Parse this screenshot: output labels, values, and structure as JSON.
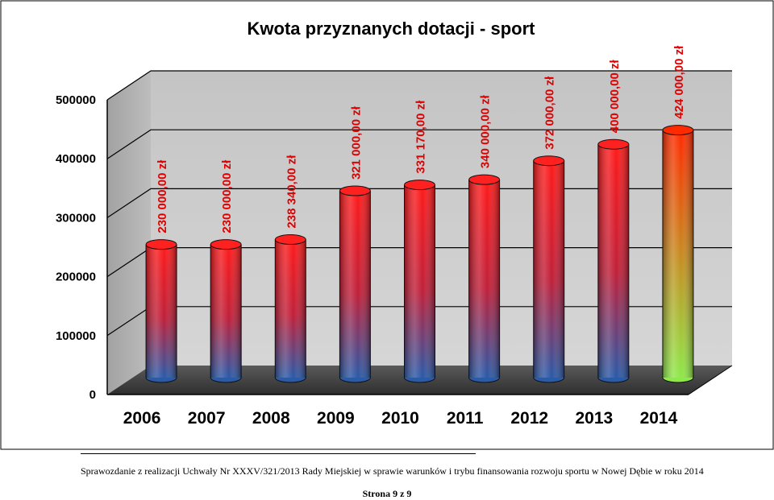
{
  "chart_data": {
    "type": "bar",
    "title": "Kwota przyznanych dotacji - sport",
    "xlabel": "",
    "ylabel": "",
    "categories": [
      "2006",
      "2007",
      "2008",
      "2009",
      "2010",
      "2011",
      "2012",
      "2013",
      "2014"
    ],
    "values": [
      230000,
      230000,
      238340,
      321000,
      331170,
      340000,
      372000,
      400000,
      424000
    ],
    "data_labels": [
      "230 000,00 zł",
      "230 000,00 zł",
      "238 340,00 zł",
      "321 000,00 zł",
      "331 170,00 zł",
      "340 000,00 zł",
      "372 000,00 zł",
      "400 000,00 zł",
      "424 000,00 zł"
    ],
    "yticks": [
      "0",
      "100000",
      "200000",
      "300000",
      "400000",
      "500000"
    ],
    "ylim": [
      0,
      500000
    ],
    "grid": true,
    "style": "3d-cylinder",
    "colors": {
      "bar_top": "#ff1a1a",
      "bar_bottom": "#2a5aa8",
      "highlight_top": "#ff2a00",
      "highlight_bottom": "#8ee84a",
      "label": "#e00000",
      "wall": "#c8c8c8",
      "side_wall": "#b0b0b0",
      "floor": "#444444"
    }
  },
  "footer": {
    "text": "Sprawozdanie z realizacji Uchwały Nr XXXV/321/2013 Rady Miejskiej w sprawie warunków i trybu finansowania rozwoju sportu w Nowej Dębie w roku 2014",
    "page": "Strona 9 z 9"
  }
}
